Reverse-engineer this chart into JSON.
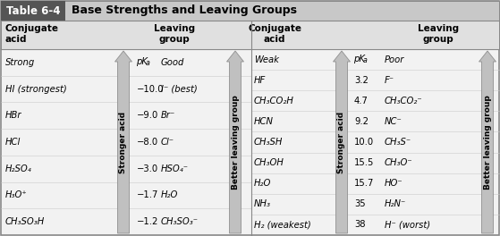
{
  "title": "Base Strengths and Leaving Groups",
  "table_label": "Table 6-4",
  "left_col1": [
    "Strong",
    "HI (strongest)",
    "HBr",
    "HCl",
    "H₂SO₄",
    "H₃O⁺",
    "CH₃SO₃H"
  ],
  "left_col2_vals": [
    "−10.0",
    "−9.0",
    "−8.0",
    "−3.0",
    "−1.7",
    "−1.2"
  ],
  "left_col3": [
    "Good",
    "I⁻ (best)",
    "Br⁻",
    "Cl⁻",
    "HSO₄⁻",
    "H₂O",
    "CH₃SO₃⁻"
  ],
  "right_col1": [
    "Weak",
    "HF",
    "CH₃CO₂H",
    "HCN",
    "CH₃SH",
    "CH₃OH",
    "H₂O",
    "NH₃",
    "H₂ (weakest)"
  ],
  "right_col2_vals": [
    "3.2",
    "4.7",
    "9.2",
    "10.0",
    "15.5",
    "15.7",
    "35",
    "38"
  ],
  "right_col3": [
    "Poor",
    "F⁻",
    "CH₃CO₂⁻",
    "NC⁻",
    "CH₃S⁻",
    "CH₃O⁻",
    "HO⁻",
    "H₂N⁻",
    "H⁻ (worst)"
  ],
  "arrow_label_left": "Stronger acid",
  "arrow_label_right": "Better leaving group",
  "title_box_color": "#555555",
  "title_bar_color": "#c8c8c8",
  "header_row_color": "#e0e0e0",
  "arrow_face_color": "#c0c0c0",
  "arrow_edge_color": "#909090",
  "body_bg": "#f2f2f2"
}
